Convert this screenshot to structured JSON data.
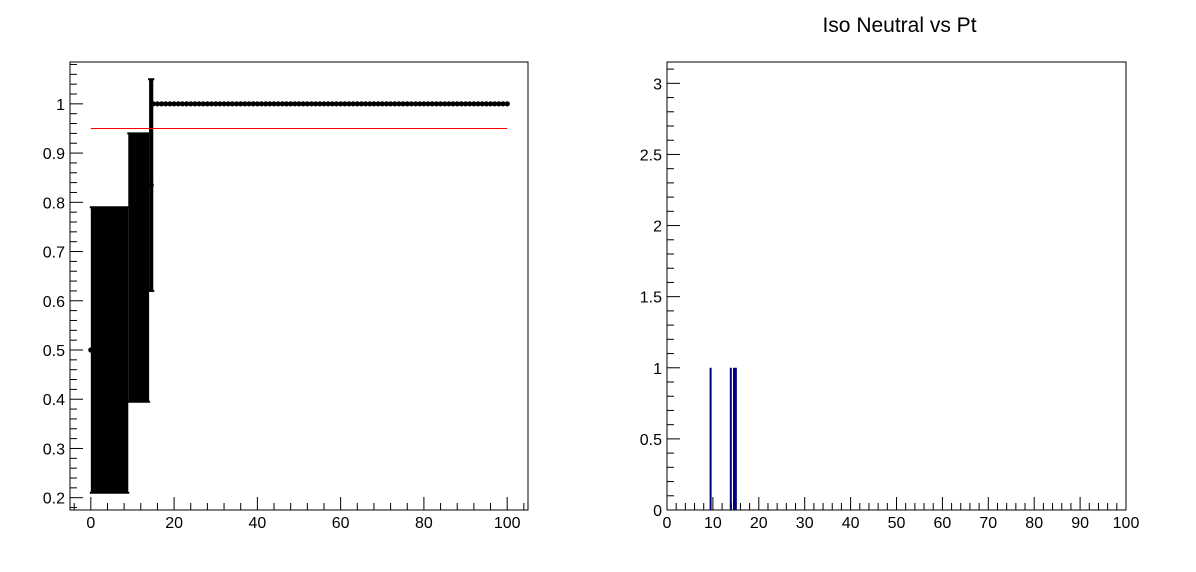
{
  "chart_data": [
    {
      "type": "scatter",
      "title": "",
      "xlabel": "",
      "ylabel": "",
      "xlim": [
        -5,
        105
      ],
      "ylim": [
        0.175,
        1.085
      ],
      "xticks": [
        0,
        20,
        40,
        60,
        80,
        100
      ],
      "xtick_labels": [
        "0",
        "20",
        "40",
        "60",
        "80",
        "100"
      ],
      "yticks": [
        0.2,
        0.3,
        0.4,
        0.5,
        0.6,
        0.7,
        0.8,
        0.9,
        1.0
      ],
      "ytick_labels": [
        "0.2",
        "0.3",
        "0.4",
        "0.5",
        "0.6",
        "0.7",
        "0.8",
        "0.9",
        "1"
      ],
      "grid": false,
      "colors": {
        "points": "#000000",
        "reference_line": "#ff0000"
      },
      "reference_line": {
        "y": 0.95,
        "x_from": 0,
        "x_to": 100
      },
      "error_boxes": [
        {
          "x_from": 0,
          "x_to": 9,
          "y_low": 0.21,
          "y_high": 0.79
        },
        {
          "x_from": 9,
          "x_to": 14,
          "y_low": 0.395,
          "y_high": 0.94
        },
        {
          "x_from": 14,
          "x_to": 15,
          "y_low": 0.62,
          "y_high": 1.05
        }
      ],
      "points": [
        {
          "x": 0,
          "y": 0.5
        },
        {
          "x": 14.5,
          "y": 0.835
        }
      ],
      "flat_series": {
        "x_from": 15,
        "x_to": 100,
        "step": 1,
        "y": 1.0
      }
    },
    {
      "type": "bar",
      "title": "Iso Neutral vs Pt",
      "xlabel": "",
      "ylabel": "",
      "xlim": [
        0,
        100
      ],
      "ylim": [
        0,
        3.15
      ],
      "xticks": [
        0,
        10,
        20,
        30,
        40,
        50,
        60,
        70,
        80,
        90,
        100
      ],
      "xtick_labels": [
        "0",
        "10",
        "20",
        "30",
        "40",
        "50",
        "60",
        "70",
        "80",
        "90",
        "100"
      ],
      "yticks": [
        0,
        0.5,
        1,
        1.5,
        2,
        2.5,
        3
      ],
      "ytick_labels": [
        "0",
        "0.5",
        "1",
        "1.5",
        "2",
        "2.5",
        "3"
      ],
      "grid": false,
      "colors": {
        "bars": "#000080"
      },
      "bars": [
        {
          "x": 9.5,
          "value": 1
        },
        {
          "x": 13.9,
          "value": 1
        },
        {
          "x": 14.6,
          "value": 1
        },
        {
          "x": 15.0,
          "value": 1
        }
      ]
    }
  ]
}
